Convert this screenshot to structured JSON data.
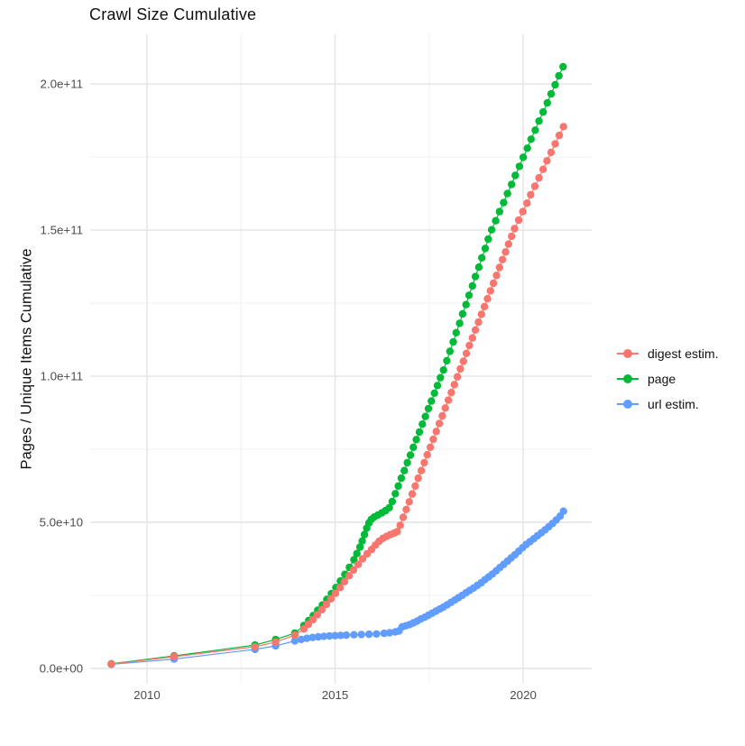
{
  "chart_data": {
    "type": "scatter",
    "title": "Crawl Size Cumulative",
    "xlabel": "",
    "ylabel": "Pages / Unique Items Cumulative",
    "value_unit": "1e9",
    "grid": "on",
    "legend_position": "right",
    "x_domain": [
      2008.49,
      2021.82
    ],
    "y_domain": [
      -5.25,
      217
    ],
    "x_ticks": [
      {
        "value": 2010,
        "label": "2010"
      },
      {
        "value": 2015,
        "label": "2015"
      },
      {
        "value": 2020,
        "label": "2020"
      }
    ],
    "x_minor": [
      2012.5,
      2017.5
    ],
    "y_ticks": [
      {
        "value": 0,
        "label": "0.0e+00"
      },
      {
        "value": 50,
        "label": "5.0e+10"
      },
      {
        "value": 100,
        "label": "1.0e+11"
      },
      {
        "value": 150,
        "label": "1.5e+11"
      },
      {
        "value": 200,
        "label": "2.0e+11"
      }
    ],
    "y_minor": [
      25,
      75,
      125,
      175
    ],
    "series": [
      {
        "name": "digest estim.",
        "color": "#F8766D",
        "points": [
          [
            2009.05,
            1.5
          ],
          [
            2010.72,
            4.0
          ],
          [
            2012.87,
            7.4
          ],
          [
            2013.42,
            9.0
          ],
          [
            2013.93,
            11.4
          ],
          [
            2014.17,
            13.5
          ],
          [
            2014.29,
            15.1
          ],
          [
            2014.41,
            16.7
          ],
          [
            2014.53,
            18.4
          ],
          [
            2014.65,
            20.1
          ],
          [
            2014.77,
            21.9
          ],
          [
            2014.89,
            23.8
          ],
          [
            2015.01,
            25.7
          ],
          [
            2015.13,
            27.7
          ],
          [
            2015.25,
            29.7
          ],
          [
            2015.37,
            31.7
          ],
          [
            2015.49,
            33.7
          ],
          [
            2015.61,
            35.6
          ],
          [
            2015.73,
            37.5
          ],
          [
            2015.85,
            39.2
          ],
          [
            2015.97,
            40.7
          ],
          [
            2016.07,
            42.2
          ],
          [
            2016.17,
            43.5
          ],
          [
            2016.27,
            44.5
          ],
          [
            2016.37,
            45.2
          ],
          [
            2016.47,
            45.8
          ],
          [
            2016.57,
            46.3
          ],
          [
            2016.65,
            46.8
          ],
          [
            2016.73,
            49.0
          ],
          [
            2016.81,
            51.7
          ],
          [
            2016.89,
            54.4
          ],
          [
            2016.97,
            57.0
          ],
          [
            2017.05,
            59.7
          ],
          [
            2017.13,
            62.4
          ],
          [
            2017.21,
            65.1
          ],
          [
            2017.29,
            67.7
          ],
          [
            2017.37,
            70.4
          ],
          [
            2017.45,
            73.1
          ],
          [
            2017.53,
            75.7
          ],
          [
            2017.61,
            78.4
          ],
          [
            2017.69,
            81.1
          ],
          [
            2017.77,
            83.8
          ],
          [
            2017.85,
            86.4
          ],
          [
            2017.93,
            89.1
          ],
          [
            2018.01,
            91.8
          ],
          [
            2018.09,
            94.4
          ],
          [
            2018.17,
            97.1
          ],
          [
            2018.25,
            99.8
          ],
          [
            2018.33,
            102.5
          ],
          [
            2018.41,
            105.1
          ],
          [
            2018.49,
            107.8
          ],
          [
            2018.57,
            110.5
          ],
          [
            2018.65,
            113.1
          ],
          [
            2018.73,
            115.8
          ],
          [
            2018.81,
            118.5
          ],
          [
            2018.89,
            121.2
          ],
          [
            2018.97,
            123.8
          ],
          [
            2019.05,
            126.5
          ],
          [
            2019.13,
            129.2
          ],
          [
            2019.21,
            131.8
          ],
          [
            2019.29,
            134.5
          ],
          [
            2019.37,
            137.2
          ],
          [
            2019.45,
            139.9
          ],
          [
            2019.53,
            142.5
          ],
          [
            2019.61,
            145.2
          ],
          [
            2019.69,
            147.9
          ],
          [
            2019.77,
            150.5
          ],
          [
            2019.88,
            153.4
          ],
          [
            2019.99,
            156.3
          ],
          [
            2020.1,
            159.2
          ],
          [
            2020.2,
            162.1
          ],
          [
            2020.31,
            165.0
          ],
          [
            2020.42,
            167.9
          ],
          [
            2020.53,
            170.8
          ],
          [
            2020.63,
            173.7
          ],
          [
            2020.74,
            176.6
          ],
          [
            2020.85,
            179.5
          ],
          [
            2020.96,
            182.4
          ],
          [
            2021.07,
            185.4
          ]
        ]
      },
      {
        "name": "page",
        "color": "#00BA38",
        "points": [
          [
            2009.05,
            1.6
          ],
          [
            2010.72,
            4.3
          ],
          [
            2012.87,
            8.0
          ],
          [
            2013.42,
            9.9
          ],
          [
            2013.93,
            12.1
          ],
          [
            2014.17,
            14.7
          ],
          [
            2014.3,
            16.4
          ],
          [
            2014.42,
            18.1
          ],
          [
            2014.54,
            19.9
          ],
          [
            2014.66,
            21.7
          ],
          [
            2014.78,
            23.6
          ],
          [
            2014.9,
            25.6
          ],
          [
            2015.02,
            27.7
          ],
          [
            2015.14,
            29.9
          ],
          [
            2015.26,
            32.2
          ],
          [
            2015.38,
            34.6
          ],
          [
            2015.5,
            37.2
          ],
          [
            2015.58,
            39.3
          ],
          [
            2015.66,
            41.5
          ],
          [
            2015.72,
            43.6
          ],
          [
            2015.78,
            45.8
          ],
          [
            2015.84,
            48.0
          ],
          [
            2015.9,
            49.8
          ],
          [
            2015.96,
            51.0
          ],
          [
            2016.04,
            51.8
          ],
          [
            2016.14,
            52.5
          ],
          [
            2016.24,
            53.2
          ],
          [
            2016.34,
            54.0
          ],
          [
            2016.44,
            55.0
          ],
          [
            2016.52,
            57.1
          ],
          [
            2016.6,
            59.8
          ],
          [
            2016.68,
            62.4
          ],
          [
            2016.76,
            65.1
          ],
          [
            2016.84,
            67.7
          ],
          [
            2016.92,
            70.4
          ],
          [
            2017.0,
            73.0
          ],
          [
            2017.08,
            75.7
          ],
          [
            2017.16,
            78.3
          ],
          [
            2017.24,
            80.9
          ],
          [
            2017.32,
            83.6
          ],
          [
            2017.4,
            86.2
          ],
          [
            2017.48,
            88.9
          ],
          [
            2017.56,
            91.5
          ],
          [
            2017.64,
            94.2
          ],
          [
            2017.72,
            96.8
          ],
          [
            2017.8,
            99.5
          ],
          [
            2017.88,
            102.1
          ],
          [
            2017.97,
            105.3
          ],
          [
            2018.05,
            108.5
          ],
          [
            2018.14,
            111.7
          ],
          [
            2018.22,
            114.9
          ],
          [
            2018.31,
            118.1
          ],
          [
            2018.39,
            121.3
          ],
          [
            2018.48,
            124.5
          ],
          [
            2018.56,
            127.7
          ],
          [
            2018.65,
            130.9
          ],
          [
            2018.73,
            134.1
          ],
          [
            2018.82,
            137.3
          ],
          [
            2018.9,
            140.5
          ],
          [
            2018.99,
            143.7
          ],
          [
            2019.07,
            146.9
          ],
          [
            2019.16,
            150.1
          ],
          [
            2019.27,
            153.2
          ],
          [
            2019.37,
            156.3
          ],
          [
            2019.48,
            159.4
          ],
          [
            2019.58,
            162.5
          ],
          [
            2019.69,
            165.6
          ],
          [
            2019.79,
            168.7
          ],
          [
            2019.9,
            171.8
          ],
          [
            2020.0,
            174.9
          ],
          [
            2020.11,
            178.0
          ],
          [
            2020.21,
            181.1
          ],
          [
            2020.32,
            184.2
          ],
          [
            2020.42,
            187.3
          ],
          [
            2020.53,
            190.4
          ],
          [
            2020.64,
            193.5
          ],
          [
            2020.74,
            196.6
          ],
          [
            2020.85,
            199.7
          ],
          [
            2020.95,
            202.8
          ],
          [
            2021.06,
            205.9
          ]
        ]
      },
      {
        "name": "url estim.",
        "color": "#619CFF",
        "points": [
          [
            2009.05,
            1.4
          ],
          [
            2010.72,
            3.2
          ],
          [
            2012.87,
            6.5
          ],
          [
            2013.42,
            7.7
          ],
          [
            2013.93,
            9.4
          ],
          [
            2014.1,
            9.9
          ],
          [
            2014.25,
            10.3
          ],
          [
            2014.4,
            10.6
          ],
          [
            2014.55,
            10.8
          ],
          [
            2014.7,
            11.0
          ],
          [
            2014.85,
            11.1
          ],
          [
            2015.0,
            11.2
          ],
          [
            2015.15,
            11.3
          ],
          [
            2015.3,
            11.4
          ],
          [
            2015.5,
            11.5
          ],
          [
            2015.7,
            11.6
          ],
          [
            2015.9,
            11.7
          ],
          [
            2016.1,
            11.8
          ],
          [
            2016.3,
            12.0
          ],
          [
            2016.45,
            12.2
          ],
          [
            2016.6,
            12.5
          ],
          [
            2016.7,
            12.8
          ],
          [
            2016.78,
            14.2
          ],
          [
            2016.88,
            14.6
          ],
          [
            2016.98,
            15.0
          ],
          [
            2017.08,
            15.6
          ],
          [
            2017.18,
            16.2
          ],
          [
            2017.28,
            16.9
          ],
          [
            2017.38,
            17.5
          ],
          [
            2017.48,
            18.2
          ],
          [
            2017.58,
            18.9
          ],
          [
            2017.68,
            19.6
          ],
          [
            2017.78,
            20.3
          ],
          [
            2017.88,
            21.0
          ],
          [
            2017.98,
            21.8
          ],
          [
            2018.08,
            22.6
          ],
          [
            2018.18,
            23.4
          ],
          [
            2018.28,
            24.2
          ],
          [
            2018.38,
            25.0
          ],
          [
            2018.48,
            25.9
          ],
          [
            2018.58,
            26.7
          ],
          [
            2018.68,
            27.5
          ],
          [
            2018.78,
            28.4
          ],
          [
            2018.88,
            29.3
          ],
          [
            2018.98,
            30.3
          ],
          [
            2019.08,
            31.3
          ],
          [
            2019.18,
            32.3
          ],
          [
            2019.28,
            33.4
          ],
          [
            2019.38,
            34.5
          ],
          [
            2019.48,
            35.6
          ],
          [
            2019.58,
            36.7
          ],
          [
            2019.68,
            37.8
          ],
          [
            2019.78,
            38.9
          ],
          [
            2019.88,
            40.1
          ],
          [
            2019.98,
            41.3
          ],
          [
            2020.08,
            42.4
          ],
          [
            2020.18,
            43.4
          ],
          [
            2020.28,
            44.4
          ],
          [
            2020.38,
            45.4
          ],
          [
            2020.48,
            46.4
          ],
          [
            2020.58,
            47.4
          ],
          [
            2020.68,
            48.5
          ],
          [
            2020.78,
            49.6
          ],
          [
            2020.88,
            50.8
          ],
          [
            2020.98,
            52.1
          ],
          [
            2021.07,
            53.8
          ]
        ]
      }
    ]
  }
}
